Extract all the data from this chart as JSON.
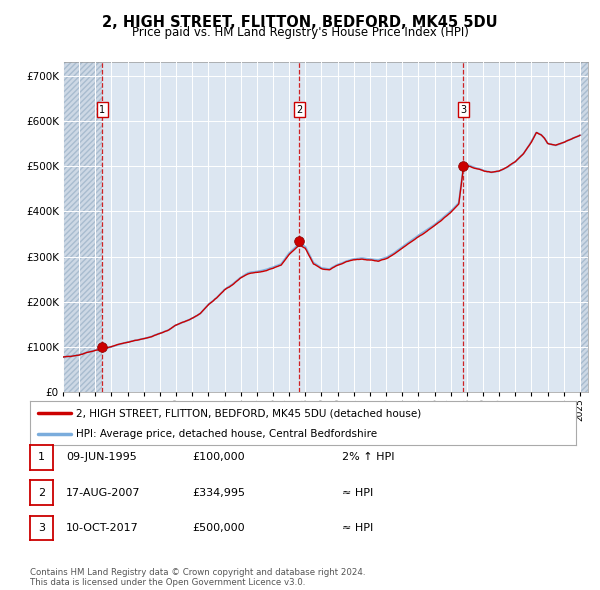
{
  "title": "2, HIGH STREET, FLITTON, BEDFORD, MK45 5DU",
  "subtitle": "Price paid vs. HM Land Registry's House Price Index (HPI)",
  "background_color": "#ffffff",
  "plot_bg_color": "#dce6f1",
  "grid_color": "#ffffff",
  "ylim": [
    0,
    730000
  ],
  "xlim_start": 1993.0,
  "xlim_end": 2025.5,
  "yticks": [
    0,
    100000,
    200000,
    300000,
    400000,
    500000,
    600000,
    700000
  ],
  "ytick_labels": [
    "£0",
    "£100K",
    "£200K",
    "£300K",
    "£400K",
    "£500K",
    "£600K",
    "£700K"
  ],
  "xtick_years": [
    1993,
    1994,
    1995,
    1996,
    1997,
    1998,
    1999,
    2000,
    2001,
    2002,
    2003,
    2004,
    2005,
    2006,
    2007,
    2008,
    2009,
    2010,
    2011,
    2012,
    2013,
    2014,
    2015,
    2016,
    2017,
    2018,
    2019,
    2020,
    2021,
    2022,
    2023,
    2024,
    2025
  ],
  "line_color_hpi": "#7aacdc",
  "line_color_price": "#cc0000",
  "marker_color": "#cc0000",
  "vline_color": "#cc0000",
  "hatch_left_end": 1995.44,
  "hatch_right_start": 2025.0,
  "sale_points": [
    {
      "year": 1995.44,
      "price": 100000,
      "label": "1"
    },
    {
      "year": 2007.63,
      "price": 334995,
      "label": "2"
    },
    {
      "year": 2017.78,
      "price": 500000,
      "label": "3"
    }
  ],
  "legend_entries": [
    {
      "label": "2, HIGH STREET, FLITTON, BEDFORD, MK45 5DU (detached house)",
      "color": "#cc0000"
    },
    {
      "label": "HPI: Average price, detached house, Central Bedfordshire",
      "color": "#7aacdc"
    }
  ],
  "table_rows": [
    {
      "num": "1",
      "date": "09-JUN-1995",
      "price": "£100,000",
      "hpi": "2% ↑ HPI"
    },
    {
      "num": "2",
      "date": "17-AUG-2007",
      "price": "£334,995",
      "hpi": "≈ HPI"
    },
    {
      "num": "3",
      "date": "10-OCT-2017",
      "price": "£500,000",
      "hpi": "≈ HPI"
    }
  ],
  "footer": "Contains HM Land Registry data © Crown copyright and database right 2024.\nThis data is licensed under the Open Government Licence v3.0."
}
